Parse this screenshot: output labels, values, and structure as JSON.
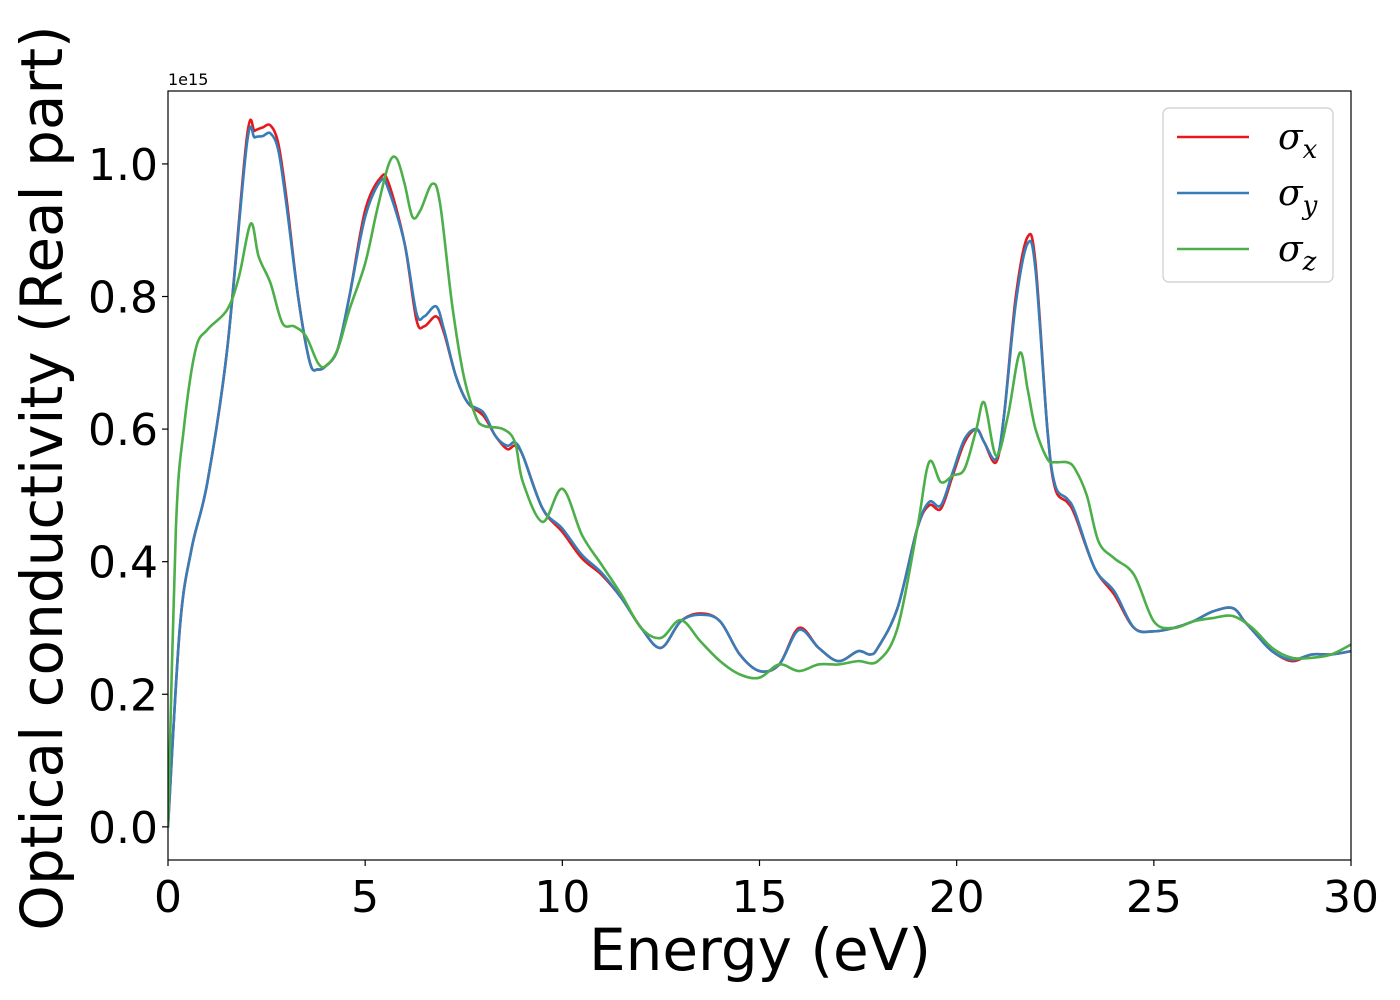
{
  "chart_data": {
    "type": "line",
    "title": "",
    "xlabel": "Energy (eV)",
    "ylabel": "Optical conductivity (Real part)",
    "y_offset_label": "1e15",
    "xlim": [
      0,
      30
    ],
    "ylim": [
      -0.05,
      1.11
    ],
    "xticks": [
      0,
      5,
      10,
      15,
      20,
      25,
      30
    ],
    "xtick_labels": [
      "0",
      "5",
      "10",
      "15",
      "20",
      "25",
      "30"
    ],
    "yticks": [
      0.0,
      0.2,
      0.4,
      0.6,
      0.8,
      1.0
    ],
    "ytick_labels": [
      "0.0",
      "0.2",
      "0.4",
      "0.6",
      "0.8",
      "1.0"
    ],
    "grid": false,
    "legend_position": "top-right",
    "series": [
      {
        "name": "σx",
        "legend_base": "σ",
        "legend_sub": "x",
        "color": "#e41a1c",
        "x": [
          0,
          0.3,
          0.6,
          1.0,
          1.5,
          2.0,
          2.2,
          2.4,
          2.6,
          2.8,
          3.0,
          3.3,
          3.6,
          3.8,
          4.0,
          4.3,
          4.6,
          5.0,
          5.4,
          5.6,
          6.0,
          6.3,
          6.5,
          6.8,
          7.0,
          7.3,
          7.6,
          8.0,
          8.3,
          8.6,
          8.8,
          9.0,
          9.5,
          10.0,
          10.5,
          11.0,
          11.5,
          12.0,
          12.5,
          13.0,
          13.5,
          14.0,
          14.5,
          15.0,
          15.5,
          16.0,
          16.5,
          17.0,
          17.5,
          17.8,
          18.0,
          18.5,
          19.0,
          19.3,
          19.6,
          19.9,
          20.2,
          20.5,
          20.7,
          21.0,
          21.2,
          21.5,
          21.8,
          22.0,
          22.3,
          22.5,
          22.8,
          23.0,
          23.5,
          24.0,
          24.5,
          25.0,
          25.5,
          26.0,
          26.5,
          27.0,
          27.3,
          27.6,
          28.0,
          28.5,
          29.0,
          29.5,
          30.0
        ],
        "values": [
          0.0,
          0.3,
          0.42,
          0.52,
          0.72,
          1.04,
          1.05,
          1.055,
          1.058,
          1.03,
          0.95,
          0.8,
          0.7,
          0.69,
          0.695,
          0.72,
          0.8,
          0.93,
          0.98,
          0.97,
          0.88,
          0.765,
          0.755,
          0.77,
          0.745,
          0.68,
          0.64,
          0.62,
          0.59,
          0.57,
          0.575,
          0.56,
          0.48,
          0.445,
          0.405,
          0.38,
          0.345,
          0.3,
          0.27,
          0.31,
          0.322,
          0.31,
          0.26,
          0.235,
          0.245,
          0.3,
          0.27,
          0.25,
          0.265,
          0.26,
          0.27,
          0.33,
          0.45,
          0.485,
          0.48,
          0.53,
          0.58,
          0.6,
          0.58,
          0.55,
          0.62,
          0.8,
          0.89,
          0.85,
          0.6,
          0.51,
          0.49,
          0.47,
          0.39,
          0.35,
          0.3,
          0.295,
          0.3,
          0.31,
          0.325,
          0.33,
          0.31,
          0.29,
          0.265,
          0.25,
          0.26,
          0.26,
          0.265
        ]
      },
      {
        "name": "σy",
        "legend_base": "σ",
        "legend_sub": "y",
        "color": "#377eb8",
        "x": [
          0,
          0.3,
          0.6,
          1.0,
          1.5,
          2.0,
          2.2,
          2.4,
          2.6,
          2.8,
          3.0,
          3.3,
          3.6,
          3.8,
          4.0,
          4.3,
          4.6,
          5.0,
          5.4,
          5.6,
          6.0,
          6.3,
          6.5,
          6.8,
          7.0,
          7.3,
          7.6,
          8.0,
          8.3,
          8.6,
          8.8,
          9.0,
          9.5,
          10.0,
          10.5,
          11.0,
          11.5,
          12.0,
          12.5,
          13.0,
          13.5,
          14.0,
          14.5,
          15.0,
          15.5,
          16.0,
          16.5,
          17.0,
          17.5,
          17.8,
          18.0,
          18.5,
          19.0,
          19.3,
          19.6,
          19.9,
          20.2,
          20.5,
          20.7,
          21.0,
          21.2,
          21.5,
          21.8,
          22.0,
          22.3,
          22.5,
          22.8,
          23.0,
          23.5,
          24.0,
          24.5,
          25.0,
          25.5,
          26.0,
          26.5,
          27.0,
          27.3,
          27.6,
          28.0,
          28.5,
          29.0,
          29.5,
          30.0
        ],
        "values": [
          0.0,
          0.3,
          0.42,
          0.52,
          0.72,
          1.03,
          1.04,
          1.042,
          1.046,
          1.02,
          0.94,
          0.8,
          0.7,
          0.69,
          0.695,
          0.72,
          0.8,
          0.92,
          0.975,
          0.96,
          0.88,
          0.775,
          0.77,
          0.785,
          0.75,
          0.68,
          0.64,
          0.625,
          0.59,
          0.575,
          0.58,
          0.56,
          0.48,
          0.45,
          0.41,
          0.383,
          0.345,
          0.3,
          0.27,
          0.31,
          0.32,
          0.31,
          0.26,
          0.235,
          0.245,
          0.297,
          0.27,
          0.25,
          0.265,
          0.26,
          0.27,
          0.33,
          0.45,
          0.49,
          0.485,
          0.535,
          0.585,
          0.6,
          0.58,
          0.555,
          0.62,
          0.79,
          0.88,
          0.84,
          0.6,
          0.515,
          0.495,
          0.475,
          0.39,
          0.355,
          0.3,
          0.295,
          0.3,
          0.31,
          0.325,
          0.33,
          0.31,
          0.29,
          0.265,
          0.252,
          0.26,
          0.26,
          0.265
        ]
      },
      {
        "name": "σz",
        "legend_base": "σ",
        "legend_sub": "z",
        "color": "#4daf4a",
        "x": [
          0,
          0.2,
          0.4,
          0.7,
          1.0,
          1.5,
          1.8,
          2.1,
          2.3,
          2.6,
          2.9,
          3.2,
          3.5,
          3.8,
          4.0,
          4.3,
          4.6,
          5.0,
          5.3,
          5.6,
          5.8,
          6.0,
          6.2,
          6.4,
          6.7,
          6.9,
          7.2,
          7.5,
          7.8,
          8.0,
          8.5,
          8.8,
          9.0,
          9.5,
          10.0,
          10.5,
          11.0,
          11.5,
          12.0,
          12.5,
          13.0,
          13.5,
          14.0,
          14.5,
          15.0,
          15.5,
          16.0,
          16.5,
          17.0,
          17.5,
          18.0,
          18.5,
          19.0,
          19.3,
          19.6,
          19.9,
          20.2,
          20.5,
          20.7,
          21.0,
          21.3,
          21.6,
          21.8,
          22.0,
          22.3,
          22.5,
          22.8,
          23.0,
          23.3,
          23.6,
          24.0,
          24.5,
          25.0,
          25.5,
          26.0,
          26.5,
          27.0,
          27.5,
          28.0,
          28.5,
          29.0,
          29.5,
          30.0
        ],
        "values": [
          0.0,
          0.45,
          0.6,
          0.72,
          0.75,
          0.78,
          0.83,
          0.91,
          0.86,
          0.82,
          0.76,
          0.755,
          0.74,
          0.7,
          0.695,
          0.72,
          0.78,
          0.85,
          0.93,
          1.0,
          1.008,
          0.97,
          0.92,
          0.93,
          0.97,
          0.94,
          0.79,
          0.68,
          0.62,
          0.605,
          0.6,
          0.58,
          0.52,
          0.46,
          0.51,
          0.44,
          0.395,
          0.35,
          0.3,
          0.285,
          0.312,
          0.28,
          0.25,
          0.23,
          0.225,
          0.245,
          0.235,
          0.245,
          0.245,
          0.25,
          0.25,
          0.3,
          0.45,
          0.55,
          0.52,
          0.53,
          0.54,
          0.6,
          0.64,
          0.56,
          0.62,
          0.715,
          0.66,
          0.6,
          0.555,
          0.55,
          0.55,
          0.54,
          0.5,
          0.43,
          0.405,
          0.38,
          0.31,
          0.3,
          0.31,
          0.315,
          0.318,
          0.3,
          0.27,
          0.255,
          0.255,
          0.26,
          0.275
        ]
      }
    ]
  }
}
